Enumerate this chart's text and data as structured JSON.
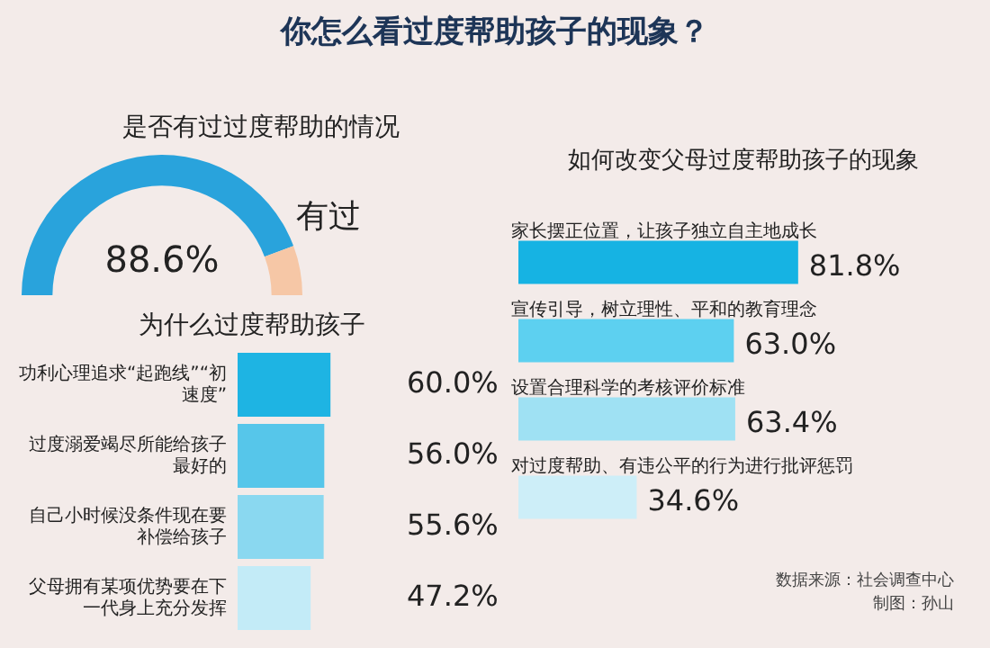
{
  "chart_data": [
    {
      "type": "donut",
      "title": "你怎么看过度帮助孩子的现象？",
      "subtitle": "是否有过过度帮助的情况",
      "categories": [
        "有过",
        null
      ],
      "values": [
        88.6,
        11.4
      ],
      "colors": [
        "#29a3dc",
        "#f6c7a6"
      ],
      "value_labels": [
        "88.6%",
        null
      ]
    },
    {
      "type": "bar",
      "orientation": "horizontal",
      "title": "为什么过度帮助孩子",
      "categories": [
        "功利心理追求“起跑线”“初速度”",
        "过度溺爱竭尽所能给孩子最好的",
        "自己小时候没条件现在要补偿给孩子",
        "父母拥有某项优势要在下一代身上充分发挥"
      ],
      "values": [
        60.0,
        56.0,
        55.6,
        47.2
      ],
      "colors": [
        "#1eb4e3",
        "#56c6ea",
        "#8ad8f0",
        "#c3ebf7"
      ],
      "value_labels": [
        "60.0%",
        "56.0%",
        "55.6%",
        "47.2%"
      ]
    },
    {
      "type": "bar",
      "orientation": "horizontal",
      "title": "如何改变父母过度帮助孩子的现象",
      "categories": [
        "家长摆正位置，让孩子独立自主地成长",
        "宣传引导，树立理性、平和的教育理念",
        "设置合理科学的考核评价标准",
        "对过度帮助、有违公平的行为进行批评惩罚"
      ],
      "values": [
        81.8,
        63.0,
        63.4,
        34.6
      ],
      "colors": [
        "#16b3e3",
        "#5dd0f0",
        "#9fe1f3",
        "#cdeef8"
      ],
      "value_labels": [
        "81.8%",
        "63.0%",
        "63.4%",
        "34.6%"
      ],
      "annotations": [
        "数据来源：社会调查中心",
        "制图：孙山"
      ]
    }
  ]
}
